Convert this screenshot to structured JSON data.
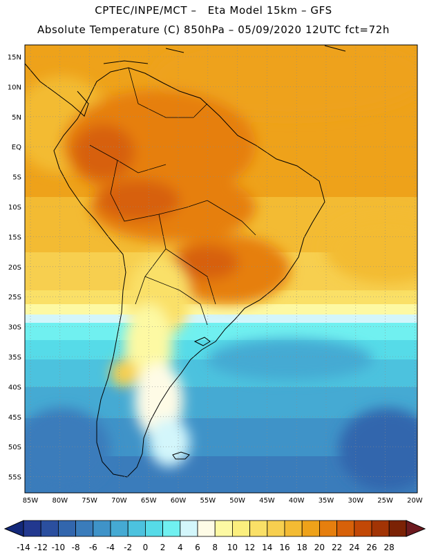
{
  "header": {
    "line1": "CPTEC/INPE/MCT –   Eta Model 15km – GFS",
    "line2": "Absolute Temperature (C) 850hPa – 05/09/2020 12UTC fct=72h"
  },
  "map": {
    "lat_labels": [
      "15N",
      "10N",
      "5N",
      "EQ",
      "5S",
      "10S",
      "15S",
      "20S",
      "25S",
      "30S",
      "35S",
      "40S",
      "45S",
      "50S",
      "55S"
    ],
    "lon_labels": [
      "85W",
      "80W",
      "75W",
      "70W",
      "65W",
      "60W",
      "55W",
      "50W",
      "45W",
      "40W",
      "35W",
      "30W",
      "25W",
      "20W"
    ]
  },
  "colorbar": {
    "labels": [
      "-14",
      "-12",
      "-10",
      "-8",
      "-6",
      "-4",
      "-2",
      "0",
      "2",
      "4",
      "6",
      "8",
      "10",
      "12",
      "14",
      "16",
      "18",
      "20",
      "22",
      "24",
      "26",
      "28"
    ],
    "colors": [
      "#22388f",
      "#2b4f9f",
      "#3266ad",
      "#3a7cbb",
      "#3f93c8",
      "#45aad3",
      "#4cc2de",
      "#56dbe8",
      "#70f0f0",
      "#d3f6fb",
      "#fefbe6",
      "#fdf9a3",
      "#fbef7e",
      "#fae067",
      "#f7cf4f",
      "#f3bb33",
      "#eea21a",
      "#e67f0e",
      "#d76109",
      "#c24806",
      "#a23405",
      "#7b2205"
    ],
    "low_arrow_color": "#13287a",
    "high_arrow_color": "#6d1a1f"
  }
}
